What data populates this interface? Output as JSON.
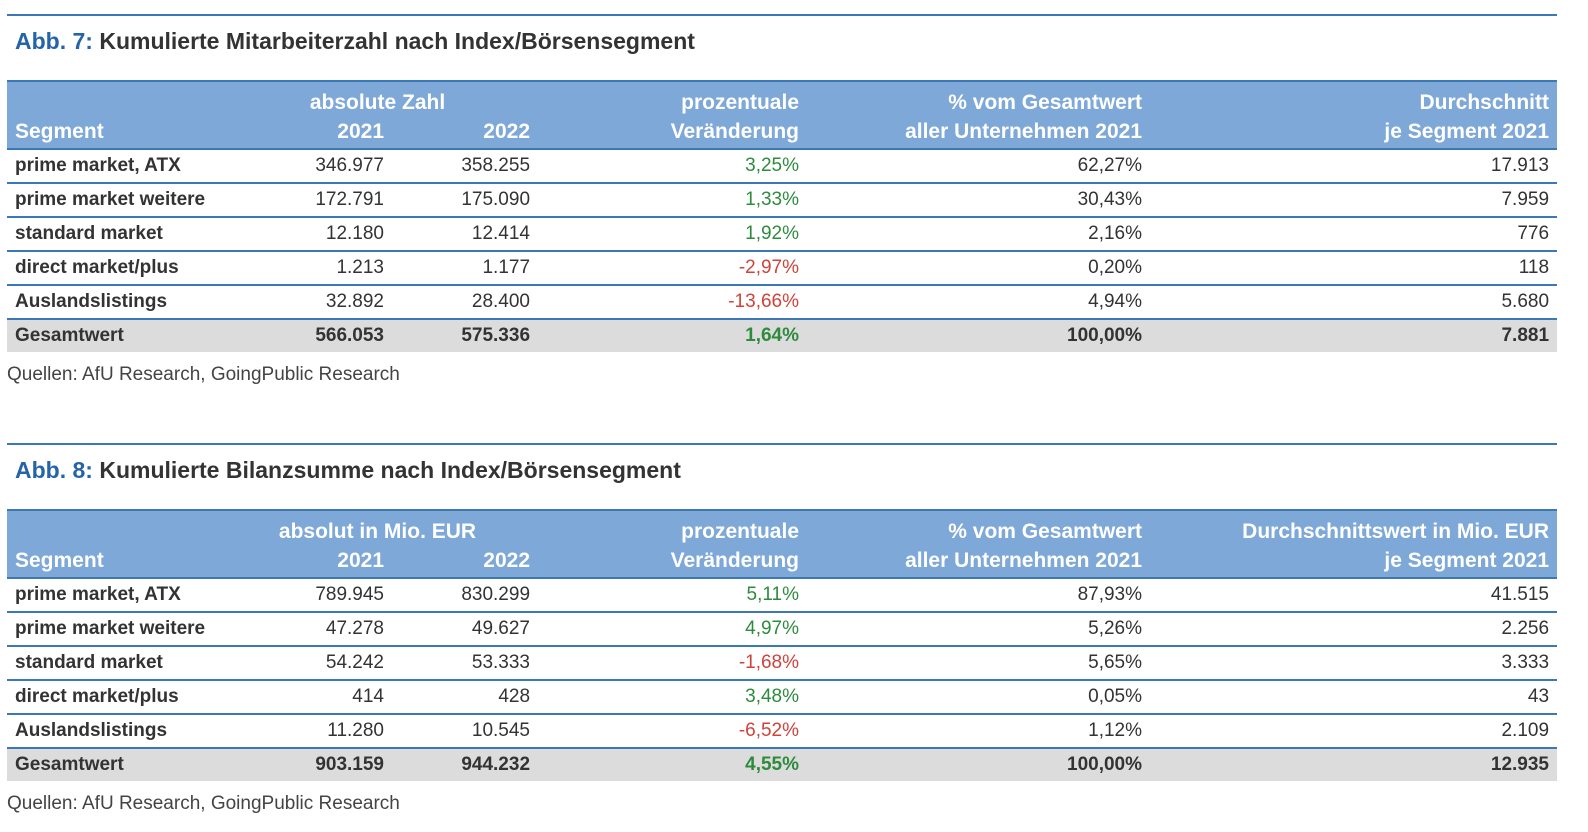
{
  "source_label": "Quellen: AfU Research, GoingPublic Research",
  "figures": [
    {
      "abb": "Abb. 7:",
      "title": "Kumulierte Mitarbeiterzahl nach Index/Börsensegment",
      "headers": {
        "segment": "Segment",
        "group_label": "absolute Zahl",
        "year1": "2021",
        "year2": "2022",
        "change_l1": "prozentuale",
        "change_l2": "Veränderung",
        "share_l1": "% vom Gesamtwert",
        "share_l2": "aller Unternehmen 2021",
        "avg_l1": "Durchschnitt",
        "avg_l2": "je Segment 2021"
      },
      "rows": [
        {
          "segment": "prime market, ATX",
          "v2021": "346.977",
          "v2022": "358.255",
          "change": "3,25%",
          "share": "62,27%",
          "avg": "17.913"
        },
        {
          "segment": "prime market weitere",
          "v2021": "172.791",
          "v2022": "175.090",
          "change": "1,33%",
          "share": "30,43%",
          "avg": "7.959"
        },
        {
          "segment": "standard market",
          "v2021": "12.180",
          "v2022": "12.414",
          "change": "1,92%",
          "share": "2,16%",
          "avg": "776"
        },
        {
          "segment": "direct market/plus",
          "v2021": "1.213",
          "v2022": "1.177",
          "change": "-2,97%",
          "share": "0,20%",
          "avg": "118"
        },
        {
          "segment": "Auslandslistings",
          "v2021": "32.892",
          "v2022": "28.400",
          "change": "-13,66%",
          "share": "4,94%",
          "avg": "5.680"
        }
      ],
      "total": {
        "segment": "Gesamtwert",
        "v2021": "566.053",
        "v2022": "575.336",
        "change": "1,64%",
        "share": "100,00%",
        "avg": "7.881"
      }
    },
    {
      "abb": "Abb. 8:",
      "title": "Kumulierte Bilanzsumme nach Index/Börsensegment",
      "headers": {
        "segment": "Segment",
        "group_label": "absolut in Mio. EUR",
        "year1": "2021",
        "year2": "2022",
        "change_l1": "prozentuale",
        "change_l2": "Veränderung",
        "share_l1": "% vom Gesamtwert",
        "share_l2": "aller Unternehmen 2021",
        "avg_l1": "Durchschnittswert in Mio. EUR",
        "avg_l2": "je Segment 2021"
      },
      "rows": [
        {
          "segment": "prime market, ATX",
          "v2021": "789.945",
          "v2022": "830.299",
          "change": "5,11%",
          "share": "87,93%",
          "avg": "41.515"
        },
        {
          "segment": "prime market weitere",
          "v2021": "47.278",
          "v2022": "49.627",
          "change": "4,97%",
          "share": "5,26%",
          "avg": "2.256"
        },
        {
          "segment": "standard market",
          "v2021": "54.242",
          "v2022": "53.333",
          "change": "-1,68%",
          "share": "5,65%",
          "avg": "3.333"
        },
        {
          "segment": "direct market/plus",
          "v2021": "414",
          "v2022": "428",
          "change": "3,48%",
          "share": "0,05%",
          "avg": "43"
        },
        {
          "segment": "Auslandslistings",
          "v2021": "11.280",
          "v2022": "10.545",
          "change": "-6,52%",
          "share": "1,12%",
          "avg": "2.109"
        }
      ],
      "total": {
        "segment": "Gesamtwert",
        "v2021": "903.159",
        "v2022": "944.232",
        "change": "4,55%",
        "share": "100,00%",
        "avg": "12.935"
      }
    }
  ],
  "colors": {
    "header_bg": "#7ea8d8",
    "rule": "#3c78b4",
    "positive": "#2e8b3e",
    "negative": "#d0433a",
    "total_bg": "#dcdcdc",
    "abb_blue": "#2564a8"
  }
}
